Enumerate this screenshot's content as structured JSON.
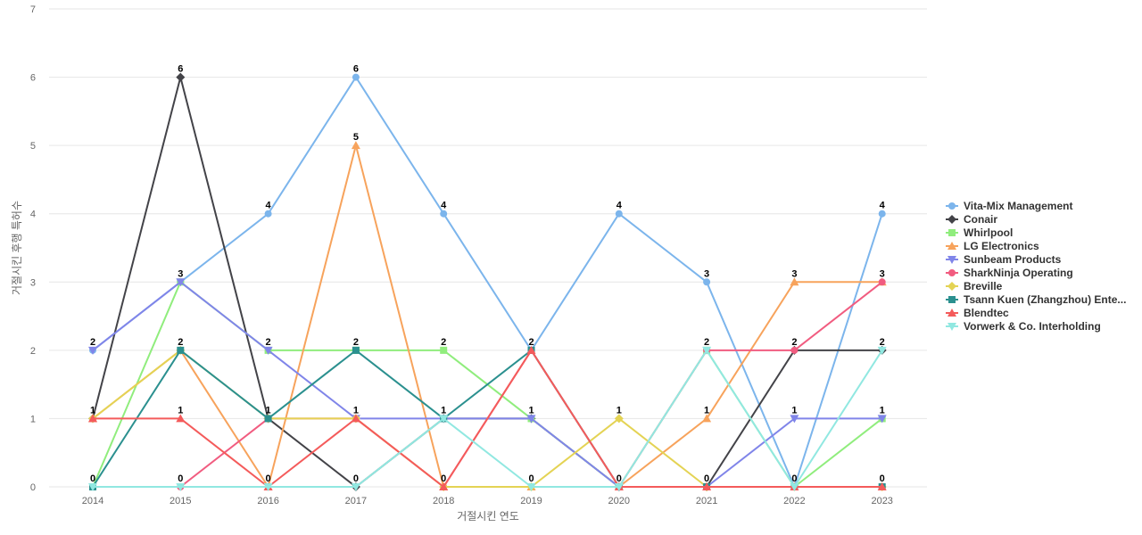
{
  "chart_data": {
    "type": "line",
    "title": "",
    "xlabel": "거절시킨 연도",
    "ylabel": "거절시킨 후행 특허수",
    "categories": [
      "2014",
      "2015",
      "2016",
      "2017",
      "2018",
      "2019",
      "2020",
      "2021",
      "2022",
      "2023"
    ],
    "ylim": [
      0,
      7
    ],
    "yticks": [
      0,
      1,
      2,
      3,
      4,
      5,
      6,
      7
    ],
    "grid": true,
    "legend_position": "right",
    "series": [
      {
        "name": "Vita-Mix Management",
        "color": "#7cb5ec",
        "marker": "circle",
        "values": [
          2,
          3,
          4,
          6,
          4,
          2,
          4,
          3,
          0,
          4
        ]
      },
      {
        "name": "Conair",
        "color": "#434348",
        "marker": "diamond",
        "values": [
          1,
          6,
          1,
          0,
          1,
          1,
          0,
          0,
          2,
          2
        ]
      },
      {
        "name": "Whirlpool",
        "color": "#90ed7d",
        "marker": "square",
        "values": [
          0,
          3,
          2,
          2,
          2,
          1,
          0,
          2,
          0,
          1
        ]
      },
      {
        "name": "LG Electronics",
        "color": "#f7a35c",
        "marker": "triangle",
        "values": [
          1,
          2,
          0,
          5,
          0,
          0,
          0,
          1,
          3,
          3
        ]
      },
      {
        "name": "Sunbeam Products",
        "color": "#8085e9",
        "marker": "triangle-down",
        "values": [
          2,
          3,
          2,
          1,
          1,
          1,
          0,
          0,
          1,
          1
        ]
      },
      {
        "name": "SharkNinja Operating",
        "color": "#f15c80",
        "marker": "circle",
        "values": [
          0,
          0,
          1,
          1,
          0,
          2,
          0,
          2,
          2,
          3
        ]
      },
      {
        "name": "Breville",
        "color": "#e4d354",
        "marker": "diamond",
        "values": [
          1,
          2,
          1,
          1,
          0,
          0,
          1,
          0,
          0,
          0
        ]
      },
      {
        "name": "Tsann Kuen (Zhangzhou) Ente...",
        "color": "#2b908f",
        "marker": "square",
        "values": [
          0,
          2,
          1,
          2,
          1,
          2,
          0,
          0,
          0,
          0
        ]
      },
      {
        "name": "Blendtec",
        "color": "#f45b5b",
        "marker": "triangle",
        "values": [
          1,
          1,
          0,
          1,
          0,
          2,
          0,
          0,
          0,
          0
        ]
      },
      {
        "name": "Vorwerk & Co. Interholding",
        "color": "#91e8e1",
        "marker": "triangle-down",
        "values": [
          0,
          0,
          0,
          0,
          1,
          0,
          0,
          2,
          0,
          2
        ]
      }
    ],
    "data_labels": [
      {
        "category": "2014",
        "values": [
          "2",
          "1",
          "0"
        ]
      },
      {
        "category": "2015",
        "values": [
          "6",
          "3",
          "2",
          "1",
          "0"
        ]
      },
      {
        "category": "2016",
        "values": [
          "4",
          "2",
          "1",
          "0"
        ]
      },
      {
        "category": "2017",
        "values": [
          "6",
          "5",
          "2",
          "1",
          "0"
        ]
      },
      {
        "category": "2018",
        "values": [
          "4",
          "2",
          "1",
          "0"
        ]
      },
      {
        "category": "2019",
        "values": [
          "2",
          "1",
          "0"
        ]
      },
      {
        "category": "2020",
        "values": [
          "4",
          "1",
          "0"
        ]
      },
      {
        "category": "2021",
        "values": [
          "3",
          "2",
          "1",
          "0"
        ]
      },
      {
        "category": "2022",
        "values": [
          "3",
          "2",
          "1",
          "0"
        ]
      },
      {
        "category": "2023",
        "values": [
          "4",
          "3",
          "2",
          "1",
          "0"
        ]
      }
    ]
  }
}
